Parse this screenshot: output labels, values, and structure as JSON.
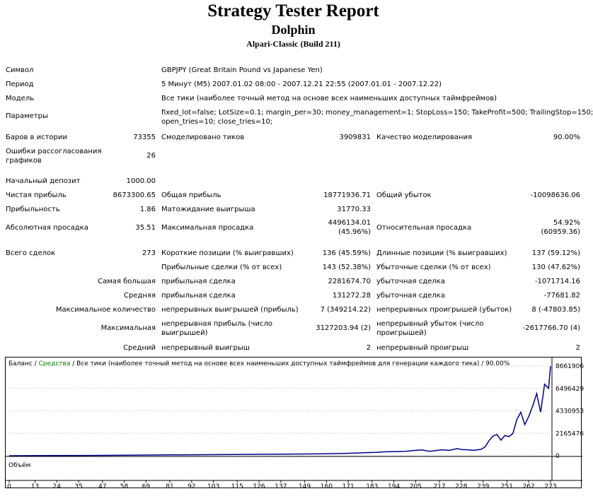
{
  "header": {
    "title": "Strategy Tester Report",
    "subtitle": "Dolphin",
    "server": "Alpari-Classic (Build 211)"
  },
  "info": {
    "symbol_label": "Символ",
    "symbol_value": "GBPJPY (Great Britain Pound vs Japanese Yen)",
    "period_label": "Период",
    "period_value": "5 Минут (M5) 2007.01.02 08:00 - 2007.12.21 22:55 (2007.01.01 - 2007.12.22)",
    "model_label": "Модель",
    "model_value": "Все тики (наиболее точный метод на основе всех наименьших доступных таймфреймов)",
    "params_label": "Параметры",
    "params_line1": "fixed_lot=false; LotSize=0.1; margin_per=30; money_management=1; StopLoss=150; TakeProfit=500; TrailingStop=150;",
    "params_line2": "open_tries=10; close_tries=10;"
  },
  "stats": {
    "bars_label": "Баров в истории",
    "bars_value": "73355",
    "ticks_label": "Смоделировано тиков",
    "ticks_value": "3909831",
    "quality_label": "Качество моделирования",
    "quality_value": "90.00%",
    "errors_label1": "Ошибки рассогласования",
    "errors_label2": "графиков",
    "errors_value": "26",
    "deposit_label": "Начальный депозит",
    "deposit_value": "1000.00",
    "net_label": "Чистая прибыль",
    "net_value": "8673300.65",
    "gross_profit_label": "Общая прибыль",
    "gross_profit_value": "18771936.71",
    "gross_loss_label": "Общий убыток",
    "gross_loss_value": "-10098636.06",
    "pf_label": "Прибыльность",
    "pf_value": "1.86",
    "payoff_label": "Матожидание выигрыша",
    "payoff_value": "31770.33",
    "abs_dd_label": "Абсолютная просадка",
    "abs_dd_value": "35.51",
    "max_dd_label": "Максимальная просадка",
    "max_dd_value1": "4496134.01",
    "max_dd_value2": "(45.96%)",
    "rel_dd_label": "Относительная просадка",
    "rel_dd_value1": "54.92%",
    "rel_dd_value2": "(60959.36)",
    "total_label": "Всего сделок",
    "total_value": "273",
    "short_label": "Короткие позиции (% выигравших)",
    "short_value": "136 (45.59%)",
    "long_label": "Длинные позиции (% выигравших)",
    "long_value": "137 (59.12%)",
    "profit_trades_label": "Прибыльные сделки (% от всех)",
    "profit_trades_value": "143 (52.38%)",
    "loss_trades_label": "Убыточные сделки (% от всех)",
    "loss_trades_value": "130 (47.62%)",
    "largest_label": "Самая большая",
    "largest_profit_label": "прибыльная сделка",
    "largest_profit_value": "2281674.70",
    "largest_loss_label": "убыточная сделка",
    "largest_loss_value": "-1071714.16",
    "average_label": "Средняя",
    "avg_profit_label": "прибыльная сделка",
    "avg_profit_value": "131272.28",
    "avg_loss_label": "убыточная сделка",
    "avg_loss_value": "-77681.82",
    "maxcount_label": "Максимальное количество",
    "consec_wins_label": "непрерывных выигрышей (прибыль)",
    "consec_wins_value": "7 (349214.22)",
    "consec_losses_label": "непрерывных проигрышей (убыток)",
    "consec_losses_value": "8 (-47803.85)",
    "maximal_label": "Максимальная",
    "consec_profit_label1": "непрерывная прибыль (число",
    "consec_profit_label2": "выигрышей)",
    "consec_profit_value": "3127203.94 (2)",
    "consec_loss_label1": "непрерывный убыток (число",
    "consec_loss_label2": "проигрышей)",
    "consec_loss_value": "-2617766.70 (4)",
    "avg_label": "Средний",
    "avg_consec_wins_label": "непрерывный выигрыш",
    "avg_consec_wins_value": "2",
    "avg_consec_losses_label": "непрерывный проигрыш",
    "avg_consec_losses_value": "2"
  },
  "chart_legend": {
    "balance": "Баланс",
    "sep1": " / ",
    "equity": "Средства",
    "rest": " / Все тики (наиболее точный метод на основе всех наименьших доступных таймфреймов для генерации каждого тика) / 90.00%",
    "volume": "Объём"
  },
  "colors": {
    "balance": "#00008B",
    "equity": "#008000",
    "grid": "#c0c0c0"
  },
  "chart_data": {
    "type": "line",
    "x_ticks": [
      "0",
      "13",
      "24",
      "35",
      "47",
      "58",
      "69",
      "81",
      "92",
      "103",
      "115",
      "126",
      "137",
      "149",
      "160",
      "171",
      "183",
      "194",
      "205",
      "217",
      "228",
      "239",
      "251",
      "262",
      "273"
    ],
    "y_ticks": [
      "8661906",
      "6496429",
      "4330953",
      "2165476",
      "0"
    ],
    "ylim": [
      0,
      8661906
    ],
    "xlim": [
      0,
      273
    ],
    "series": [
      {
        "name": "Баланс",
        "x": [
          0,
          20,
          40,
          60,
          80,
          100,
          120,
          140,
          160,
          170,
          175,
          180,
          185,
          190,
          195,
          200,
          205,
          208,
          212,
          215,
          218,
          222,
          226,
          228,
          230,
          232,
          234,
          236,
          238,
          240,
          242,
          244,
          246,
          248,
          250,
          252,
          254,
          256,
          258,
          260,
          262,
          264,
          266,
          268,
          270,
          272,
          273
        ],
        "y": [
          1000,
          15000,
          30000,
          50000,
          80000,
          100000,
          130000,
          160000,
          190000,
          230000,
          260000,
          300000,
          330000,
          380000,
          400000,
          420000,
          520000,
          560000,
          430000,
          500000,
          570000,
          520000,
          690000,
          600000,
          580000,
          560000,
          520000,
          560000,
          620000,
          850000,
          1450000,
          1900000,
          2050000,
          1500000,
          1950000,
          1850000,
          2150000,
          3500000,
          4200000,
          3000000,
          3800000,
          4800000,
          6000000,
          4200000,
          6900000,
          6500000,
          8661906
        ]
      }
    ]
  }
}
